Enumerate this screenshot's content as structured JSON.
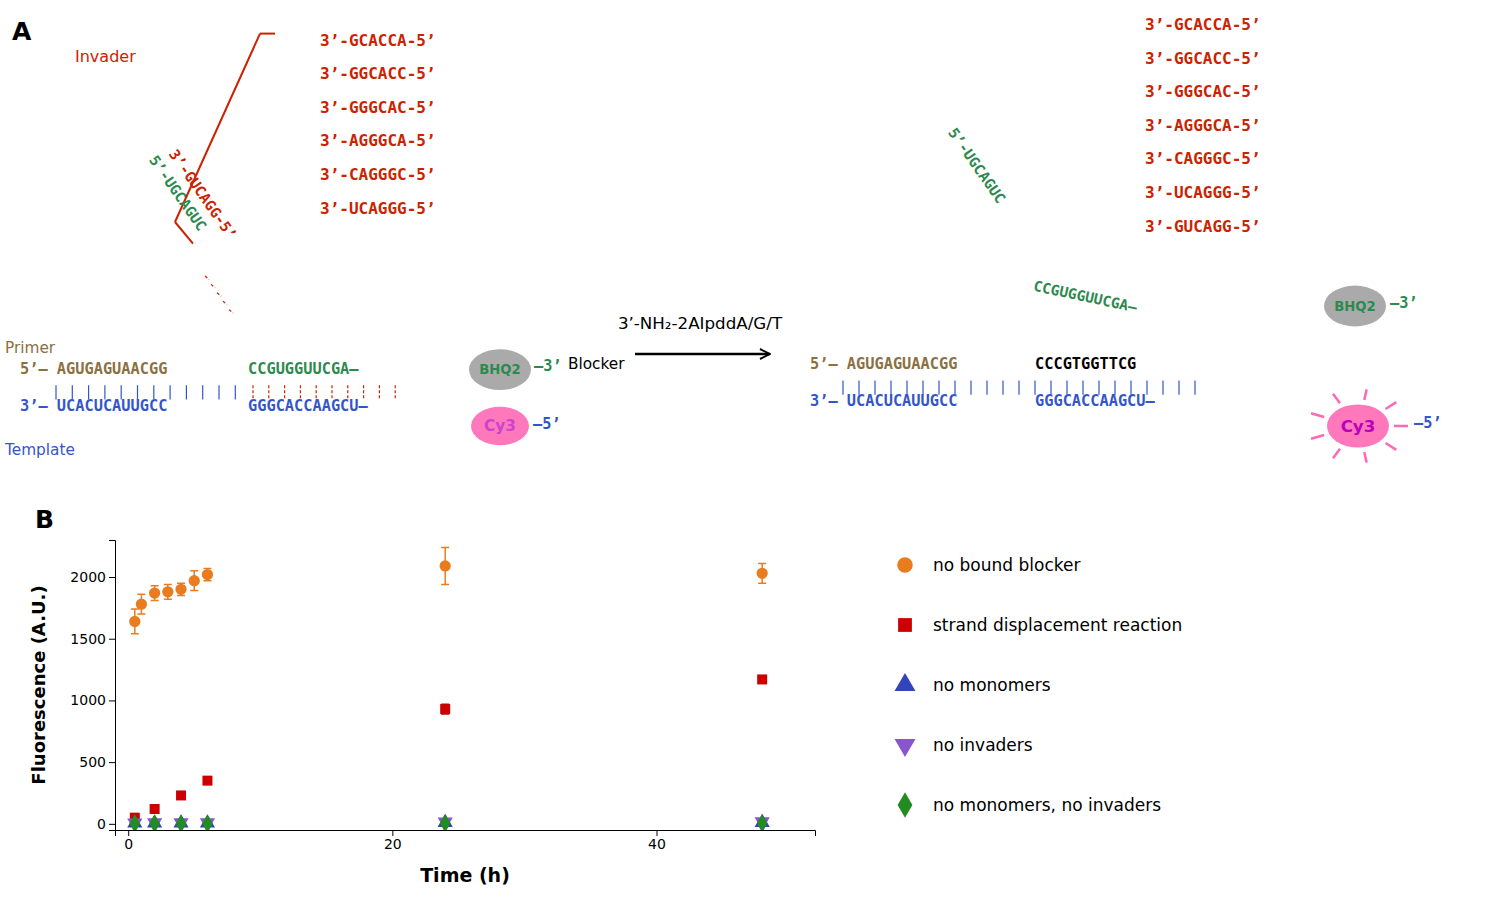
{
  "chart_data": {
    "type": "scatter",
    "xlabel": "Time (h)",
    "ylabel": "Fluorescence (A.U.)",
    "xlim": [
      -1,
      52
    ],
    "ylim": [
      -50,
      2300
    ],
    "xticks": [
      0,
      20,
      40
    ],
    "yticks": [
      0,
      500,
      1000,
      1500,
      2000
    ],
    "grid": false,
    "legend": "right",
    "series": [
      {
        "name": "no bound blocker",
        "color": "#e87c1e",
        "marker": "circle",
        "x": [
          0.5,
          1,
          2,
          3,
          4,
          5,
          6,
          24,
          48
        ],
        "values": [
          1640,
          1780,
          1870,
          1880,
          1900,
          1970,
          2020,
          2090,
          2030
        ],
        "errors": [
          100,
          80,
          60,
          60,
          50,
          80,
          50,
          150,
          80
        ]
      },
      {
        "name": "strand displacement reaction",
        "color": "#cc0000",
        "marker": "square",
        "x": [
          0.5,
          2,
          4,
          6,
          24,
          48
        ],
        "values": [
          50,
          120,
          230,
          350,
          930,
          1170
        ],
        "errors": [
          15,
          20,
          30,
          25,
          40,
          30
        ]
      },
      {
        "name": "no monomers",
        "color": "#3344bb",
        "marker": "triangle-up",
        "x": [
          0.5,
          2,
          4,
          6,
          24,
          48
        ],
        "values": [
          5,
          5,
          5,
          5,
          10,
          10
        ],
        "errors": [
          3,
          3,
          3,
          3,
          4,
          4
        ]
      },
      {
        "name": "no invaders",
        "color": "#8855cc",
        "marker": "triangle-down",
        "x": [
          0.5,
          2,
          4,
          6,
          24,
          48
        ],
        "values": [
          8,
          10,
          10,
          10,
          15,
          18
        ],
        "errors": [
          3,
          3,
          3,
          3,
          4,
          5
        ]
      },
      {
        "name": "no monomers, no invaders",
        "color": "#228b22",
        "marker": "diamond",
        "x": [
          0.5,
          2,
          4,
          6,
          24,
          48
        ],
        "values": [
          2,
          2,
          2,
          2,
          5,
          5
        ],
        "errors": [
          2,
          2,
          2,
          2,
          3,
          3
        ]
      }
    ],
    "annotations": [
      {
        "text": "A",
        "color": "#000000"
      },
      {
        "text": "Invader",
        "color": "#cc2200"
      },
      {
        "text": "3’-GCACCA-5’",
        "color": "#cc2200"
      },
      {
        "text": "3’-GGCACC-5’",
        "color": "#cc2200"
      },
      {
        "text": "3’-GGGCAC-5’",
        "color": "#cc2200"
      },
      {
        "text": "3’-AGGGCA-5’",
        "color": "#cc2200"
      },
      {
        "text": "3’-CAGGGC-5’",
        "color": "#cc2200"
      },
      {
        "text": "3’-UCAGGG-5’",
        "color": "#cc2200"
      },
      {
        "text": "5’-UGCAGUC",
        "color": "#2d8a4e"
      },
      {
        "text": "3’-GUCAGG-5’",
        "color": "#cc2200"
      },
      {
        "text": "Primer",
        "color": "#8b7040"
      },
      {
        "text": "5’–  AGUGAGUAACGG",
        "color": "#8b7040"
      },
      {
        "text": "CCGUGGUUCGA–",
        "color": "#2d8a4e"
      },
      {
        "text": "BHQ2",
        "color": "#2d8a4e"
      },
      {
        "text": "–3’",
        "color": "#2d8a4e"
      },
      {
        "text": "Blocker",
        "color": "#000000"
      },
      {
        "text": "3’–  UCACUCAUUGCC",
        "color": "#3355cc"
      },
      {
        "text": "GGGCACCAAGCU–",
        "color": "#3355cc"
      },
      {
        "text": "Cy3",
        "color": "#cc44cc"
      },
      {
        "text": "–5’",
        "color": "#3355cc"
      },
      {
        "text": "Template",
        "color": "#3355cc"
      },
      {
        "text": "3’-NH₂-2AIpddA/G/T",
        "color": "#000000"
      },
      {
        "text": "3’-GCACCA-5’",
        "color": "#cc2200"
      },
      {
        "text": "3’-GGCACC-5’",
        "color": "#cc2200"
      },
      {
        "text": "3’-GGGCAC-5’",
        "color": "#cc2200"
      },
      {
        "text": "3’-AGGGCA-5’",
        "color": "#cc2200"
      },
      {
        "text": "3’-CAGGGC-5’",
        "color": "#cc2200"
      },
      {
        "text": "3’-UCAGGG-5’",
        "color": "#cc2200"
      },
      {
        "text": "3’-GUCAGG-5’",
        "color": "#cc2200"
      },
      {
        "text": "5’-UGCAGUC",
        "color": "#2d8a4e"
      },
      {
        "text": "CCGUGGUUCGA–",
        "color": "#2d8a4e"
      },
      {
        "text": "BHQ2",
        "color": "#2d8a4e"
      },
      {
        "text": "–3’",
        "color": "#2d8a4e"
      },
      {
        "text": "5’–  AGUGAGUAACGG",
        "color": "#8b7040"
      },
      {
        "text": "CCCGTGGTTCG",
        "color": "#000000"
      },
      {
        "text": "3’–  UCACUCAUUGCC",
        "color": "#3355cc"
      },
      {
        "text": "GGGCACCAAGCU–",
        "color": "#3355cc"
      },
      {
        "text": "Cy3",
        "color": "#bb00bb"
      },
      {
        "text": "–5’",
        "color": "#3355cc"
      },
      {
        "text": "B",
        "color": "#000000"
      }
    ]
  }
}
